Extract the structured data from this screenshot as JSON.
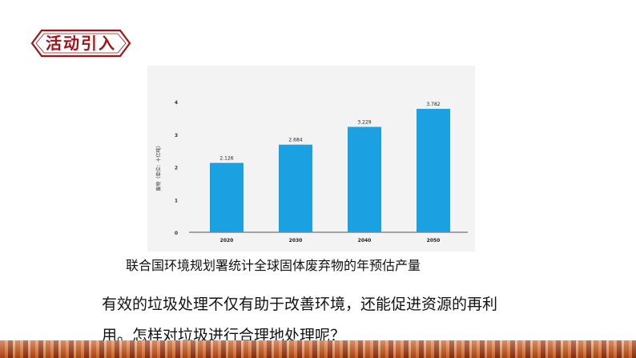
{
  "header": {
    "title": "活动引入"
  },
  "colors": {
    "accent": "#a01418",
    "bar": "#1ba1e2",
    "panel": "#f3f3f3"
  },
  "chart_data": {
    "type": "bar",
    "categories": [
      "2020",
      "2030",
      "2040",
      "2050"
    ],
    "values": [
      2.126,
      2.684,
      3.229,
      3.782
    ],
    "value_labels": [
      "2.126",
      "2.684",
      "3.229",
      "3.782"
    ],
    "yticks": [
      "0",
      "1",
      "2",
      "3",
      "4"
    ],
    "ylabel": "废物（单位：十亿吨）",
    "ylim": [
      0,
      4
    ],
    "grid": false
  },
  "caption": "联合国环境规划署统计全球固体废弃物的年预估产量",
  "paragraph": {
    "line1": "有效的垃圾处理不仅有助于改善环境，还能促进资源的再利",
    "line2": "用。怎样对垃圾进行合理地处理呢？"
  }
}
